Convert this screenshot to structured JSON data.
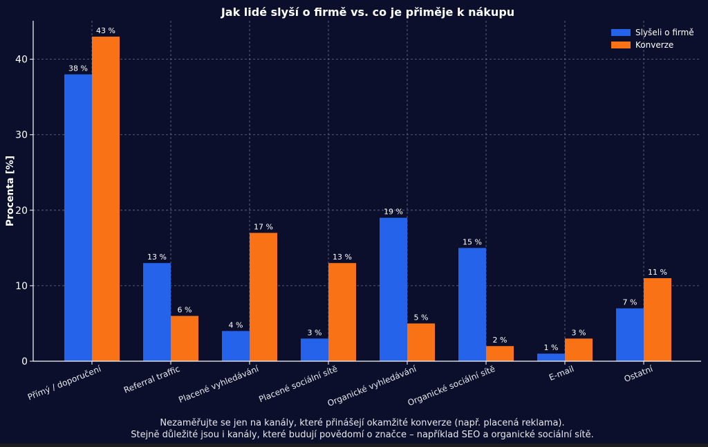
{
  "chart_data": {
    "type": "bar",
    "title": "Jak lidé slyší o firmě vs. co je přiměje k nákupu",
    "xlabel": "",
    "ylabel": "Procenta [%]",
    "ylim": [
      0,
      45.1
    ],
    "yticks": [
      0,
      10,
      20,
      30,
      40
    ],
    "grid": true,
    "legend_position": "top-right",
    "categories": [
      "Přímý / doporučení",
      "Referral traffic",
      "Placené vyhledávání",
      "Placené sociální sítě",
      "Organické vyhledávání",
      "Organické sociální sítě",
      "E-mail",
      "Ostatní"
    ],
    "series": [
      {
        "name": "Slyšeli o firmě",
        "color": "#2563eb",
        "values": [
          38,
          13,
          4,
          3,
          19,
          15,
          1,
          7
        ]
      },
      {
        "name": "Konverze",
        "color": "#f97316",
        "values": [
          43,
          6,
          17,
          13,
          5,
          2,
          3,
          11
        ]
      }
    ],
    "value_suffix": " %",
    "footnote": [
      "Nezaměřujte se jen na kanály, které přinášejí okamžité konverze (např. placená reklama).",
      "Stejně důležité jsou i kanály, které budují povědomí o značce – například SEO a organické sociální sítě."
    ]
  }
}
